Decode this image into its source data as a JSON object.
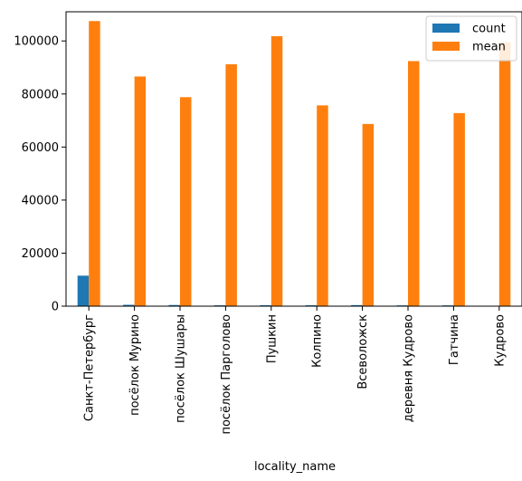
{
  "chart_data": {
    "type": "bar",
    "title": "",
    "xlabel": "locality_name",
    "ylabel": "",
    "categories": [
      "Санкт-Петербург",
      "посёлок Мурино",
      "посёлок Шушары",
      "посёлок Парголово",
      "Пушкин",
      "Колпино",
      "Всеволожск",
      "деревня Кудрово",
      "Гатчина",
      "Кудрово"
    ],
    "series": [
      {
        "name": "count",
        "color": "#1f77b4",
        "values": [
          11500,
          520,
          440,
          330,
          360,
          340,
          400,
          300,
          300,
          170
        ]
      },
      {
        "name": "mean",
        "color": "#ff7f0e",
        "values": [
          107500,
          86600,
          78800,
          91200,
          101800,
          75700,
          68700,
          92400,
          72800,
          99500
        ]
      }
    ],
    "ylim": [
      0,
      111000
    ],
    "yticks": [
      0,
      20000,
      40000,
      60000,
      80000,
      100000
    ],
    "ytick_labels": [
      "0",
      "20000",
      "40000",
      "60000",
      "80000",
      "100000"
    ],
    "legend": "top-right",
    "grid": false
  }
}
